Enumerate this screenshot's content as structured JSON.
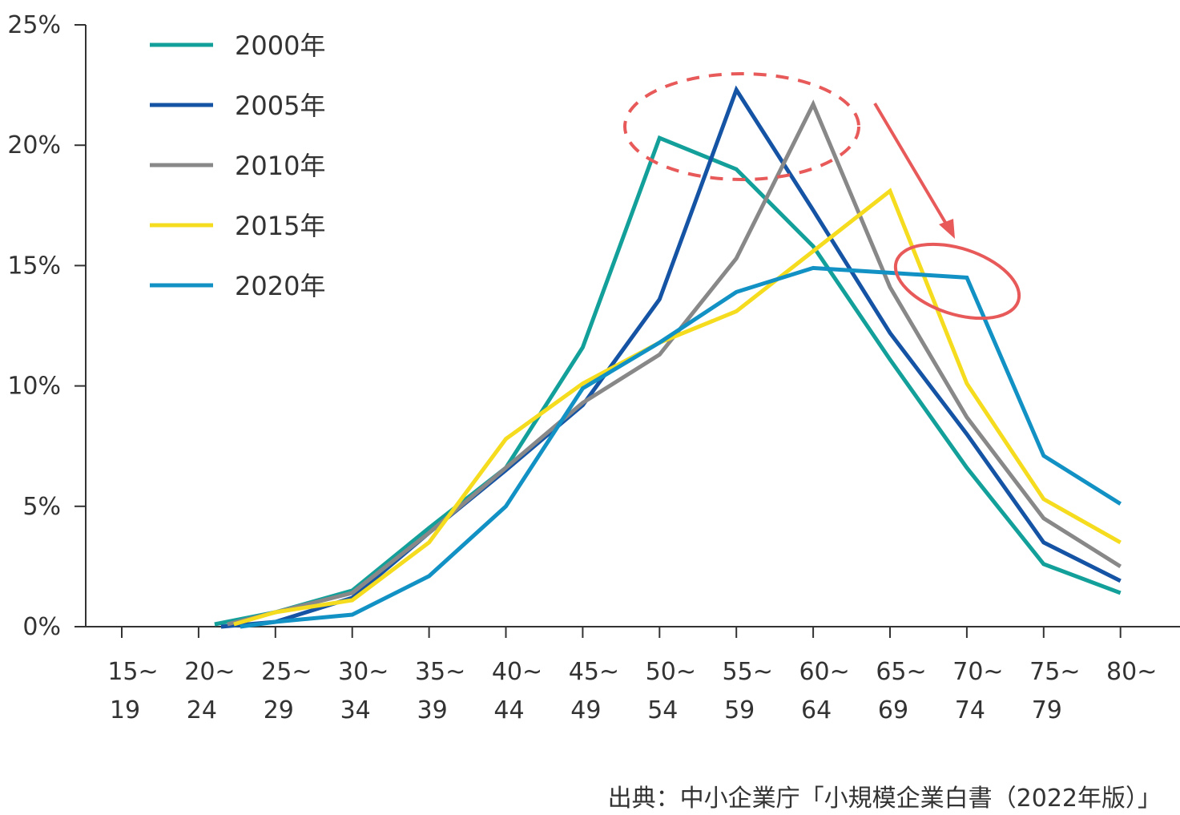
{
  "chart_data": {
    "type": "line",
    "categories": [
      [
        "15~",
        "19"
      ],
      [
        "20~",
        "24"
      ],
      [
        "25~",
        "29"
      ],
      [
        "30~",
        "34"
      ],
      [
        "35~",
        "39"
      ],
      [
        "40~",
        "44"
      ],
      [
        "45~",
        "49"
      ],
      [
        "50~",
        "54"
      ],
      [
        "55~",
        "59"
      ],
      [
        "60~",
        "64"
      ],
      [
        "65~",
        "69"
      ],
      [
        "70~",
        "74"
      ],
      [
        "75~",
        "79"
      ],
      [
        "80~",
        ""
      ]
    ],
    "y_ticks": [
      "0%",
      "5%",
      "10%",
      "15%",
      "20%",
      "25%"
    ],
    "ylim": [
      0,
      25
    ],
    "grid": false,
    "legend_position": "top-left",
    "series": [
      {
        "name": "2000年",
        "color": "#14a09a",
        "values": [
          null,
          0.1,
          0.6,
          1.5,
          4.1,
          6.6,
          11.6,
          20.3,
          19.0,
          15.8,
          11.1,
          6.6,
          2.6,
          1.4
        ]
      },
      {
        "name": "2005年",
        "color": "#1553a4",
        "values": [
          null,
          0.0,
          0.2,
          1.2,
          3.9,
          6.5,
          9.2,
          13.6,
          22.3,
          17.3,
          12.2,
          8.0,
          3.5,
          1.9
        ]
      },
      {
        "name": "2010年",
        "color": "#888888",
        "values": [
          null,
          0.1,
          0.6,
          1.4,
          3.9,
          6.6,
          9.3,
          11.3,
          15.3,
          21.7,
          14.1,
          8.7,
          4.5,
          2.5
        ]
      },
      {
        "name": "2015年",
        "color": "#f5dc1e",
        "values": [
          null,
          0.1,
          0.6,
          1.1,
          3.5,
          7.8,
          10.1,
          11.8,
          13.1,
          15.6,
          18.1,
          10.1,
          5.3,
          3.5
        ]
      },
      {
        "name": "2020年",
        "color": "#1191c4",
        "values": [
          null,
          0.0,
          0.2,
          0.5,
          2.1,
          5.0,
          9.9,
          11.8,
          13.9,
          14.9,
          14.7,
          14.5,
          7.1,
          5.1
        ]
      }
    ],
    "annotations": {
      "color": "#e85a5a",
      "dashed_ellipse": "around 2000/2005/2010 peaks",
      "arrow": "pointing down-right",
      "ellipse": "around 2020 plateau at 70~74"
    }
  },
  "source": "出典：中小企業庁「小規模企業白書（2022年版）」"
}
